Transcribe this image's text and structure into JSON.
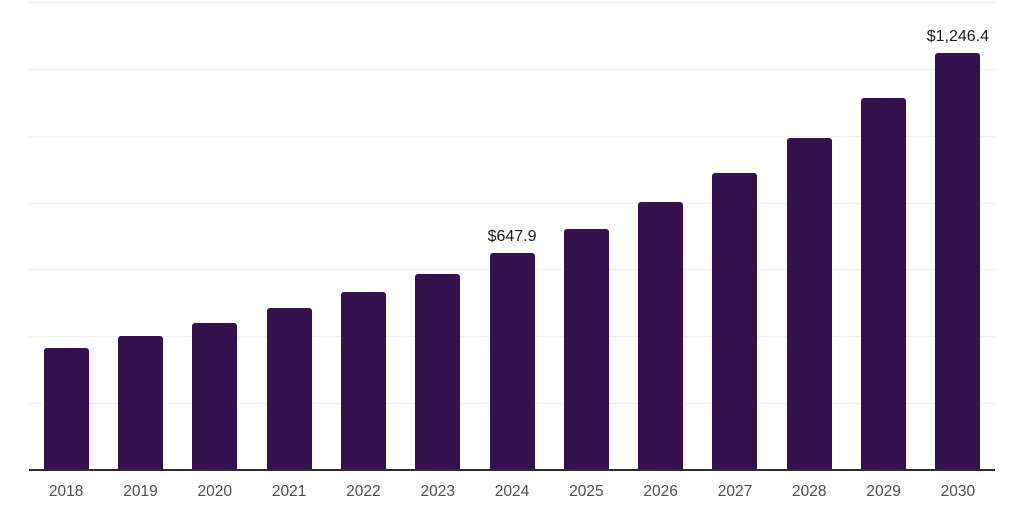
{
  "chart_data": {
    "type": "bar",
    "title": "",
    "xlabel": "",
    "ylabel": "",
    "categories": [
      "2018",
      "2019",
      "2020",
      "2021",
      "2022",
      "2023",
      "2024",
      "2025",
      "2026",
      "2027",
      "2028",
      "2029",
      "2030"
    ],
    "values": [
      365.0,
      400.5,
      440.0,
      483.5,
      533.0,
      585.0,
      647.9,
      720.5,
      800.5,
      890.0,
      992.0,
      1111.5,
      1246.4
    ],
    "ylim": [
      0,
      1400
    ],
    "grid": true,
    "gridline_values": [
      200,
      400,
      600,
      800,
      1000,
      1200,
      1400
    ],
    "legend": "none",
    "data_labels": [
      {
        "category": "2024",
        "label": "$647.9"
      },
      {
        "category": "2030",
        "label": "$1,246.4"
      }
    ],
    "colors": {
      "bar": "#35114E",
      "gridline": "#F2F2F4",
      "axis_line": "#2B2B2B",
      "tick_label": "#4D4D4D",
      "data_label": "#1B1B1B"
    }
  }
}
